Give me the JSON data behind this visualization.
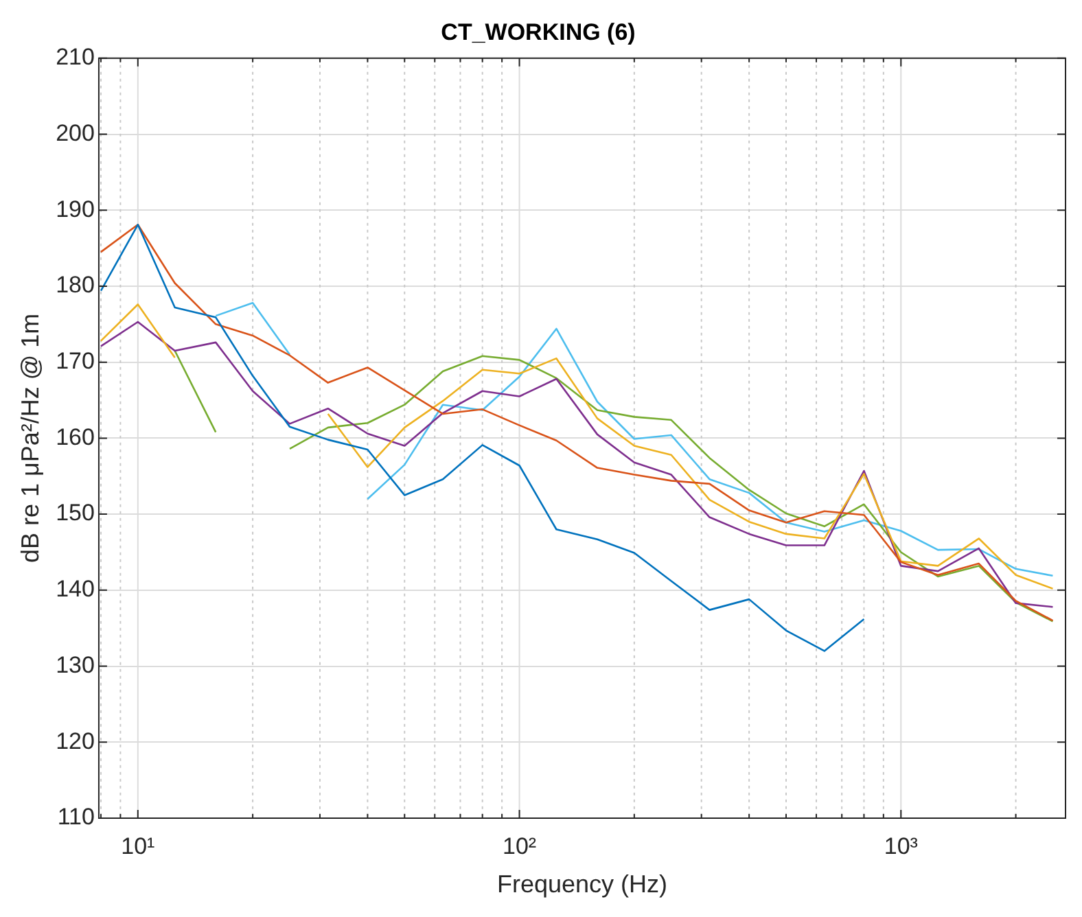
{
  "chart_data": {
    "type": "line",
    "title": "CT_WORKING (6)",
    "xlabel": "Frequency (Hz)",
    "ylabel": "dB re 1 μPa²/Hz @ 1m",
    "x": [
      8,
      10,
      12.5,
      16,
      20,
      25,
      31.5,
      40,
      50,
      63,
      80,
      100,
      125,
      160,
      200,
      250,
      315,
      400,
      500,
      630,
      800,
      1000,
      1250,
      1600,
      2000,
      2500
    ],
    "series": [
      {
        "color": "#0072bd",
        "values": [
          179.4,
          188.1,
          177.2,
          175.9,
          168.2,
          161.5,
          159.8,
          158.5,
          152.5,
          154.6,
          159.1,
          156.4,
          148,
          146.7,
          144.9,
          141.2,
          137.4,
          138.8,
          134.7,
          132,
          136.2,
          null,
          null,
          null,
          null,
          null
        ]
      },
      {
        "color": "#d95319",
        "values": [
          184.5,
          188.1,
          180.4,
          175,
          173.5,
          170.9,
          167.3,
          169.3,
          166.3,
          163.2,
          163.8,
          161.7,
          159.7,
          156.1,
          155.2,
          154.4,
          154,
          150.5,
          148.9,
          150.4,
          149.9,
          143.7,
          142,
          143.5,
          138.6,
          136
        ]
      },
      {
        "color": "#edb120",
        "values": [
          172.8,
          177.6,
          170.6,
          null,
          null,
          null,
          163.2,
          156.2,
          161.4,
          164.9,
          169,
          168.5,
          170.5,
          162.6,
          159,
          157.8,
          151.9,
          149,
          147.4,
          146.8,
          155.3,
          143.8,
          143.2,
          146.8,
          142,
          140.2
        ]
      },
      {
        "color": "#7e2f8e",
        "values": [
          172.1,
          175.3,
          171.5,
          172.6,
          166.2,
          161.9,
          163.9,
          160.6,
          159,
          163.3,
          166.2,
          165.5,
          167.8,
          160.5,
          156.8,
          155.2,
          149.6,
          147.4,
          145.9,
          145.9,
          155.7,
          143.2,
          142.5,
          145.5,
          138.3,
          137.8
        ]
      },
      {
        "color": "#77ac30",
        "values": [
          null,
          null,
          171.5,
          160.8,
          null,
          158.6,
          161.4,
          162,
          164.4,
          168.8,
          170.8,
          170.3,
          167.9,
          163.7,
          162.8,
          162.4,
          157.4,
          153.2,
          150.1,
          148.4,
          151.3,
          145,
          141.8,
          143.2,
          138.4,
          135.9
        ]
      },
      {
        "color": "#4dbeee",
        "values": [
          null,
          null,
          null,
          176.1,
          177.8,
          171,
          null,
          152,
          156.5,
          164.4,
          163.7,
          168.1,
          174.4,
          164.8,
          159.9,
          160.4,
          154.6,
          152.8,
          148.9,
          147.7,
          149.2,
          147.8,
          145.3,
          145.4,
          142.8,
          141.9
        ]
      }
    ],
    "log": "x",
    "xlim": [
      7.9,
      2700
    ],
    "xticks": [
      {
        "value": 8,
        "label": null
      },
      {
        "value": 9,
        "label": null
      },
      {
        "value": 10,
        "label": "10¹"
      },
      {
        "value": 20,
        "label": null
      },
      {
        "value": 30,
        "label": null
      },
      {
        "value": 40,
        "label": null
      },
      {
        "value": 50,
        "label": null
      },
      {
        "value": 60,
        "label": null
      },
      {
        "value": 70,
        "label": null
      },
      {
        "value": 80,
        "label": null
      },
      {
        "value": 90,
        "label": null
      },
      {
        "value": 100,
        "label": "10²"
      },
      {
        "value": 200,
        "label": null
      },
      {
        "value": 300,
        "label": null
      },
      {
        "value": 400,
        "label": null
      },
      {
        "value": 500,
        "label": null
      },
      {
        "value": 600,
        "label": null
      },
      {
        "value": 700,
        "label": null
      },
      {
        "value": 800,
        "label": null
      },
      {
        "value": 900,
        "label": null
      },
      {
        "value": 1000,
        "label": "10³"
      },
      {
        "value": 2000,
        "label": null
      }
    ],
    "ylim": [
      110,
      210
    ],
    "yticks": [
      110,
      120,
      130,
      140,
      150,
      160,
      170,
      180,
      190,
      200,
      210
    ],
    "grid": true,
    "marker": "none",
    "line_style": "solid"
  }
}
